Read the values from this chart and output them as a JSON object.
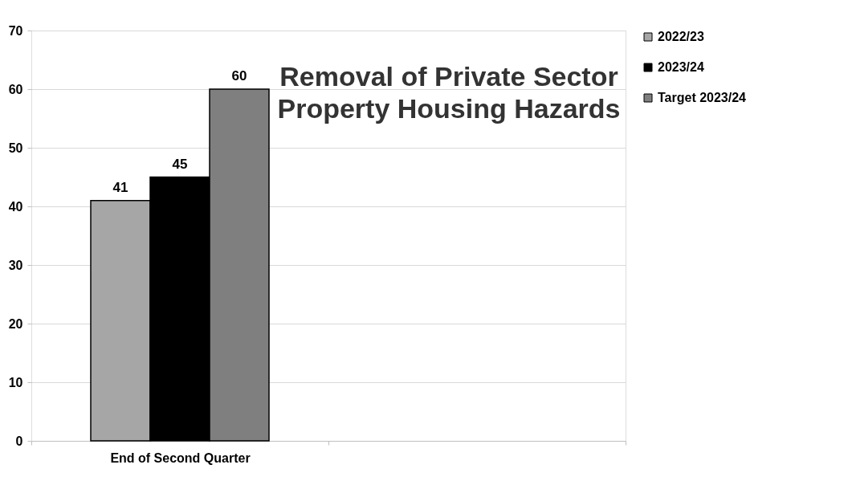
{
  "chart_data": {
    "type": "bar",
    "title": "Removal of Private Sector\nProperty Housing Hazards",
    "categories": [
      "End of Second Quarter",
      null
    ],
    "series": [
      {
        "name": "2022/23",
        "color": "#a6a6a6",
        "values": [
          41,
          null
        ]
      },
      {
        "name": "2023/24",
        "color": "#000000",
        "values": [
          45,
          null
        ]
      },
      {
        "name": "Target 2023/24",
        "color": "#7f7f7f",
        "values": [
          60,
          null
        ]
      }
    ],
    "ylim": [
      0,
      70
    ],
    "yticks": [
      0,
      10,
      20,
      30,
      40,
      50,
      60,
      70
    ],
    "grid": "y",
    "legend": "right",
    "data_labels": true
  }
}
